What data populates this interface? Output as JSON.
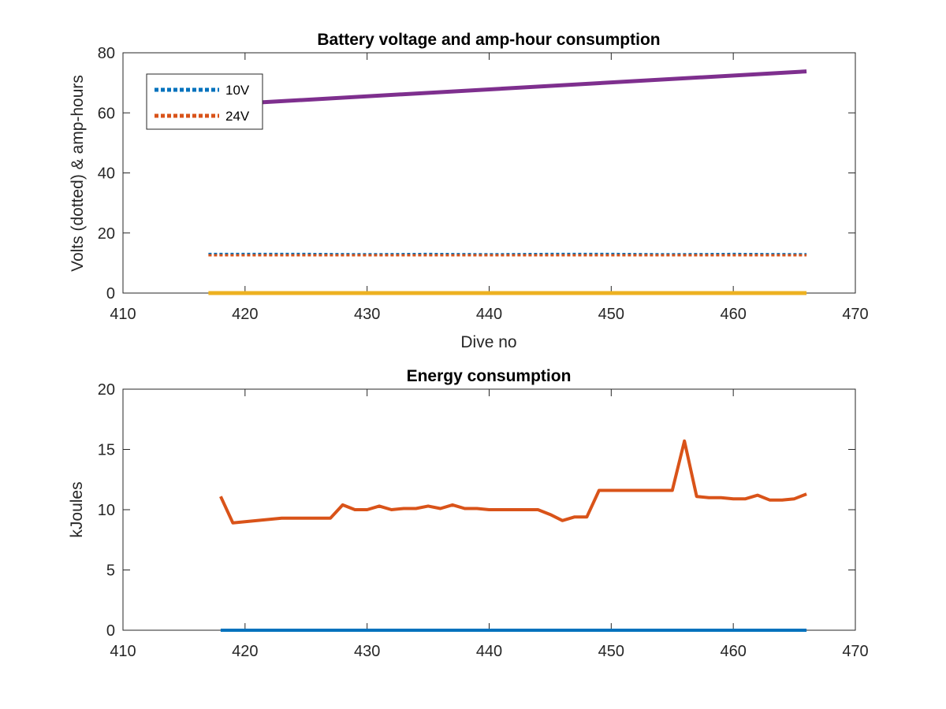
{
  "chart_data": [
    {
      "type": "line",
      "title": "Battery voltage and amp-hour consumption",
      "xlabel": "Dive no",
      "ylabel": "Volts (dotted) & amp-hours",
      "xlim": [
        410,
        470
      ],
      "ylim": [
        0,
        80
      ],
      "xticks": [
        410,
        420,
        430,
        440,
        450,
        460,
        470
      ],
      "yticks": [
        0,
        20,
        40,
        60,
        80
      ],
      "grid": false,
      "legend": {
        "placement": "top-left",
        "entries": [
          "10V",
          "24V"
        ]
      },
      "series": [
        {
          "name": "10V",
          "style": "dotted",
          "color": "#0072BD",
          "x": [
            417,
            425,
            430,
            435,
            440,
            445,
            450,
            455,
            460,
            466
          ],
          "y": [
            13.0,
            13.0,
            12.9,
            13.0,
            12.9,
            13.0,
            13.0,
            12.9,
            13.0,
            12.9
          ]
        },
        {
          "name": "24V",
          "style": "dotted",
          "color": "#D95319",
          "x": [
            417,
            425,
            430,
            435,
            440,
            445,
            450,
            455,
            460,
            466
          ],
          "y": [
            12.6,
            12.6,
            12.6,
            12.6,
            12.6,
            12.6,
            12.6,
            12.6,
            12.6,
            12.6
          ]
        },
        {
          "style": "solid",
          "color": "#EDB120",
          "x": [
            417,
            466
          ],
          "y": [
            0,
            0
          ]
        },
        {
          "style": "solid",
          "color": "#7E2F8E",
          "x": [
            417,
            466
          ],
          "y": [
            62.5,
            73.8
          ]
        }
      ]
    },
    {
      "type": "line",
      "title": "Energy consumption",
      "xlabel": "",
      "ylabel": "kJoules",
      "xlim": [
        410,
        470
      ],
      "ylim": [
        0,
        20
      ],
      "xticks": [
        410,
        420,
        430,
        440,
        450,
        460,
        470
      ],
      "yticks": [
        0,
        5,
        10,
        15,
        20
      ],
      "grid": false,
      "series": [
        {
          "style": "solid",
          "color": "#0072BD",
          "x": [
            418,
            466
          ],
          "y": [
            0,
            0
          ]
        },
        {
          "style": "solid",
          "color": "#D95319",
          "x": [
            418,
            419,
            420,
            421,
            422,
            423,
            424,
            425,
            426,
            427,
            428,
            429,
            430,
            431,
            432,
            433,
            434,
            435,
            436,
            437,
            438,
            439,
            440,
            441,
            442,
            443,
            444,
            445,
            446,
            447,
            448,
            449,
            450,
            451,
            452,
            453,
            454,
            455,
            456,
            457,
            458,
            459,
            460,
            461,
            462,
            463,
            464,
            465,
            466
          ],
          "y": [
            11.1,
            8.9,
            9.0,
            9.1,
            9.2,
            9.3,
            9.3,
            9.3,
            9.3,
            9.3,
            10.4,
            10.0,
            10.0,
            10.3,
            10.0,
            10.1,
            10.1,
            10.3,
            10.1,
            10.4,
            10.1,
            10.1,
            10.0,
            10.0,
            10.0,
            10.0,
            10.0,
            9.6,
            9.1,
            9.4,
            9.4,
            11.6,
            11.6,
            11.6,
            11.6,
            11.6,
            11.6,
            11.6,
            15.7,
            11.1,
            11.0,
            11.0,
            10.9,
            10.9,
            11.2,
            10.8,
            10.8,
            10.9,
            11.3
          ]
        }
      ]
    }
  ]
}
